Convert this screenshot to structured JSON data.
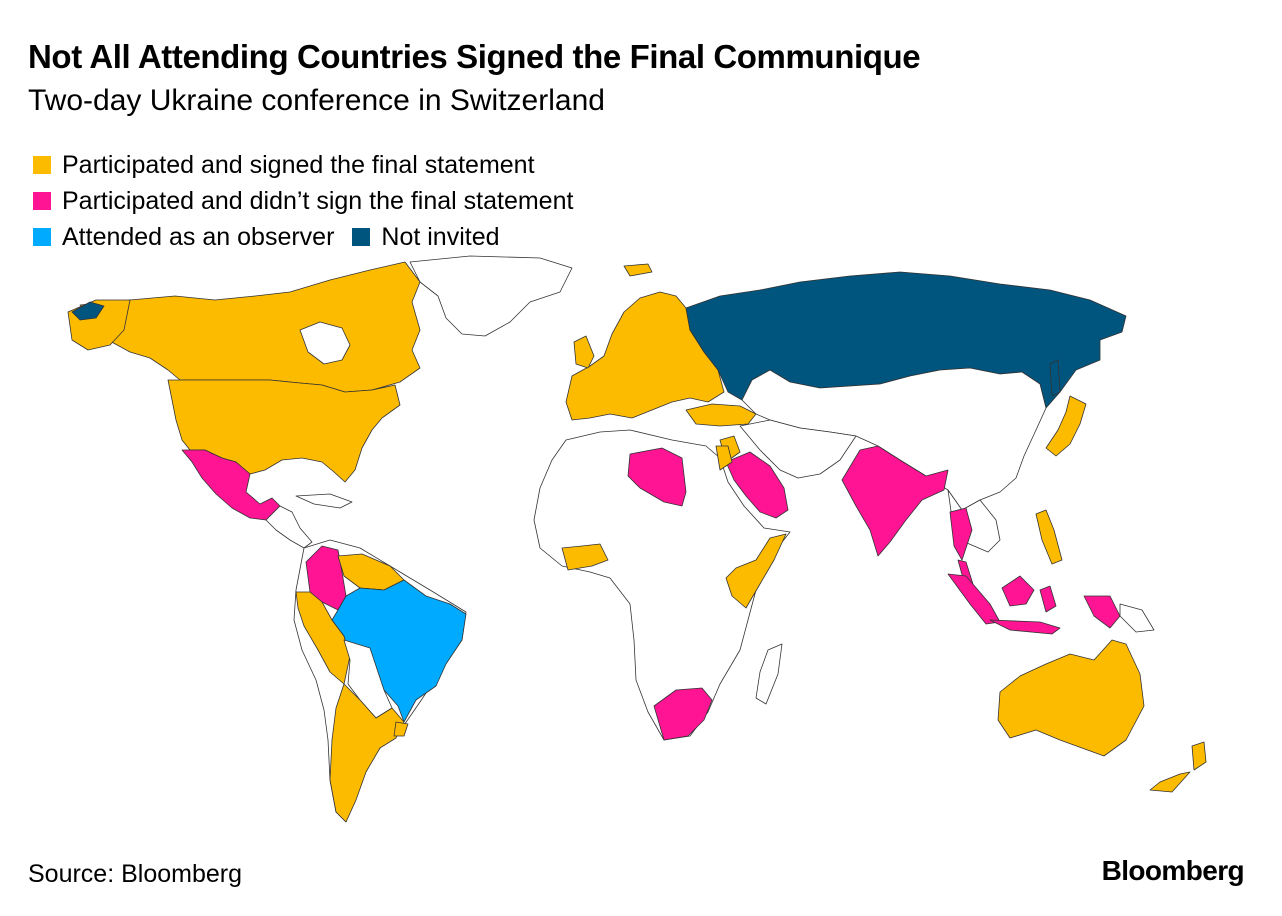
{
  "header": {
    "title": "Not All Attending Countries Signed the Final Communique",
    "subtitle": "Two-day Ukraine conference in Switzerland"
  },
  "legend": {
    "signed": {
      "label": "Participated and signed the final statement",
      "color": "#fdbb00"
    },
    "not_signed": {
      "label": "Participated and didn’t sign the final statement",
      "color": "#ff1493"
    },
    "observer": {
      "label": "Attended as an observer",
      "color": "#00aaff"
    },
    "not_invited": {
      "label": "Not invited",
      "color": "#00557f"
    }
  },
  "map": {
    "no_data_color": "#ffffff",
    "border_color": "#333333",
    "signed_regions": [
      "canada",
      "united-states",
      "europe",
      "turkey",
      "japan",
      "philippines",
      "argentina",
      "chile",
      "peru",
      "ecuador",
      "uruguay",
      "ivory-coast",
      "ghana",
      "kenya",
      "somalia",
      "australia",
      "new-zealand",
      "israel",
      "qatar",
      "jordan"
    ],
    "not_signed_regions": [
      "mexico",
      "colombia",
      "libya",
      "saudi-arabia",
      "uae",
      "india",
      "thailand",
      "indonesia",
      "south-africa"
    ],
    "observer_regions": [
      "brazil"
    ],
    "not_invited_regions": [
      "russia"
    ]
  },
  "footer": {
    "source": "Source: Bloomberg",
    "logo": "Bloomberg"
  }
}
